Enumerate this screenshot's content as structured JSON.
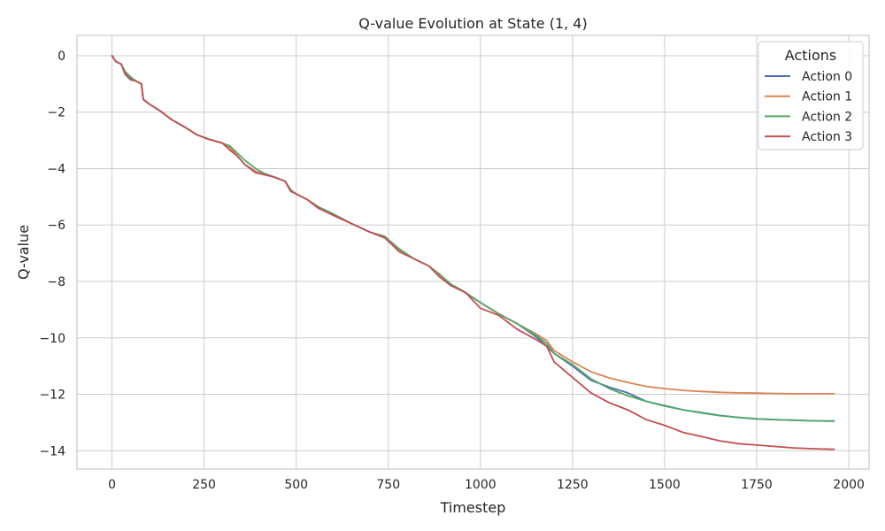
{
  "chart_data": {
    "type": "line",
    "title": "Q-value Evolution at State (1, 4)",
    "xlabel": "Timestep",
    "ylabel": "Q-value",
    "xlim": [
      -95,
      2055
    ],
    "ylim": [
      -14.65,
      0.72
    ],
    "xticks": [
      0,
      250,
      500,
      750,
      1000,
      1250,
      1500,
      1750,
      2000
    ],
    "xtick_labels": [
      "0",
      "250",
      "500",
      "750",
      "1000",
      "1250",
      "1500",
      "1750",
      "2000"
    ],
    "yticks": [
      0,
      -2,
      -4,
      -6,
      -8,
      -10,
      -12,
      -14
    ],
    "ytick_labels": [
      "0",
      "−2",
      "−4",
      "−6",
      "−8",
      "−10",
      "−12",
      "−14"
    ],
    "grid": true,
    "legend_title": "Actions",
    "legend_position": "upper-right",
    "series": [
      {
        "name": "Action 0",
        "color": "#4c72b0",
        "x": [
          0,
          10,
          25,
          35,
          50,
          65,
          80,
          85,
          100,
          130,
          160,
          180,
          200,
          230,
          260,
          300,
          320,
          340,
          360,
          390,
          410,
          440,
          470,
          485,
          500,
          530,
          560,
          600,
          650,
          700,
          740,
          780,
          820,
          860,
          890,
          920,
          960,
          1000,
          1050,
          1100,
          1150,
          1180,
          1200,
          1250,
          1300,
          1350,
          1400,
          1450,
          1500,
          1550,
          1600,
          1650,
          1700,
          1750,
          1800,
          1850,
          1900,
          1960
        ],
        "y": [
          0,
          -0.2,
          -0.3,
          -0.6,
          -0.8,
          -0.9,
          -1.0,
          -1.55,
          -1.7,
          -1.95,
          -2.25,
          -2.4,
          -2.55,
          -2.8,
          -2.95,
          -3.1,
          -3.25,
          -3.55,
          -3.85,
          -4.1,
          -4.2,
          -4.3,
          -4.45,
          -4.8,
          -4.9,
          -5.1,
          -5.4,
          -5.65,
          -5.95,
          -6.25,
          -6.45,
          -6.9,
          -7.2,
          -7.45,
          -7.8,
          -8.1,
          -8.4,
          -8.75,
          -9.15,
          -9.5,
          -9.95,
          -10.3,
          -10.55,
          -11.0,
          -11.5,
          -11.75,
          -11.95,
          -12.25,
          -12.4,
          -12.55,
          -12.65,
          -12.75,
          -12.82,
          -12.87,
          -12.9,
          -12.92,
          -12.94,
          -12.95
        ]
      },
      {
        "name": "Action 1",
        "color": "#dd8452",
        "x": [
          0,
          10,
          25,
          35,
          50,
          65,
          80,
          85,
          100,
          130,
          160,
          180,
          200,
          230,
          260,
          300,
          320,
          340,
          360,
          390,
          410,
          440,
          470,
          485,
          500,
          530,
          560,
          600,
          650,
          700,
          740,
          780,
          820,
          860,
          890,
          920,
          960,
          1000,
          1050,
          1100,
          1150,
          1180,
          1200,
          1250,
          1300,
          1350,
          1400,
          1450,
          1500,
          1550,
          1600,
          1650,
          1700,
          1750,
          1800,
          1850,
          1900,
          1960
        ],
        "y": [
          0,
          -0.2,
          -0.3,
          -0.55,
          -0.75,
          -0.9,
          -1.0,
          -1.55,
          -1.7,
          -1.95,
          -2.25,
          -2.4,
          -2.55,
          -2.8,
          -2.95,
          -3.1,
          -3.25,
          -3.55,
          -3.85,
          -4.1,
          -4.2,
          -4.3,
          -4.45,
          -4.8,
          -4.9,
          -5.1,
          -5.4,
          -5.65,
          -5.95,
          -6.25,
          -6.45,
          -6.9,
          -7.2,
          -7.45,
          -7.8,
          -8.1,
          -8.4,
          -8.75,
          -9.15,
          -9.5,
          -9.85,
          -10.1,
          -10.45,
          -10.85,
          -11.2,
          -11.42,
          -11.58,
          -11.72,
          -11.8,
          -11.86,
          -11.9,
          -11.93,
          -11.95,
          -11.96,
          -11.97,
          -11.98,
          -11.98,
          -11.98
        ]
      },
      {
        "name": "Action 2",
        "color": "#55a868",
        "x": [
          0,
          10,
          25,
          35,
          50,
          65,
          80,
          85,
          100,
          130,
          160,
          180,
          200,
          230,
          260,
          300,
          320,
          340,
          360,
          390,
          410,
          440,
          470,
          485,
          500,
          530,
          560,
          600,
          650,
          700,
          740,
          780,
          820,
          860,
          890,
          920,
          960,
          1000,
          1050,
          1100,
          1150,
          1180,
          1200,
          1250,
          1300,
          1350,
          1400,
          1450,
          1500,
          1550,
          1600,
          1650,
          1700,
          1750,
          1800,
          1850,
          1900,
          1960
        ],
        "y": [
          0,
          -0.2,
          -0.3,
          -0.55,
          -0.75,
          -0.9,
          -1.0,
          -1.55,
          -1.7,
          -1.95,
          -2.25,
          -2.4,
          -2.55,
          -2.8,
          -2.95,
          -3.1,
          -3.2,
          -3.45,
          -3.7,
          -4.0,
          -4.15,
          -4.3,
          -4.45,
          -4.75,
          -4.9,
          -5.1,
          -5.35,
          -5.6,
          -5.95,
          -6.25,
          -6.4,
          -6.85,
          -7.2,
          -7.45,
          -7.75,
          -8.1,
          -8.4,
          -8.75,
          -9.15,
          -9.5,
          -9.9,
          -10.2,
          -10.55,
          -10.95,
          -11.45,
          -11.8,
          -12.05,
          -12.25,
          -12.42,
          -12.55,
          -12.66,
          -12.76,
          -12.82,
          -12.87,
          -12.9,
          -12.92,
          -12.94,
          -12.95
        ]
      },
      {
        "name": "Action 3",
        "color": "#c44e52",
        "x": [
          0,
          10,
          25,
          35,
          50,
          65,
          80,
          85,
          100,
          130,
          160,
          180,
          200,
          230,
          260,
          300,
          320,
          340,
          360,
          390,
          410,
          440,
          470,
          485,
          500,
          530,
          560,
          600,
          650,
          700,
          740,
          780,
          820,
          860,
          890,
          920,
          960,
          1000,
          1050,
          1100,
          1150,
          1180,
          1200,
          1250,
          1300,
          1350,
          1400,
          1450,
          1500,
          1550,
          1600,
          1650,
          1700,
          1750,
          1800,
          1850,
          1900,
          1960
        ],
        "y": [
          0,
          -0.2,
          -0.3,
          -0.65,
          -0.85,
          -0.9,
          -1.0,
          -1.55,
          -1.7,
          -1.95,
          -2.25,
          -2.4,
          -2.55,
          -2.8,
          -2.95,
          -3.1,
          -3.35,
          -3.55,
          -3.85,
          -4.15,
          -4.2,
          -4.3,
          -4.45,
          -4.8,
          -4.9,
          -5.1,
          -5.4,
          -5.65,
          -5.95,
          -6.25,
          -6.45,
          -6.95,
          -7.2,
          -7.45,
          -7.85,
          -8.15,
          -8.4,
          -8.95,
          -9.2,
          -9.7,
          -10.05,
          -10.3,
          -10.85,
          -11.4,
          -11.95,
          -12.3,
          -12.55,
          -12.9,
          -13.1,
          -13.35,
          -13.5,
          -13.65,
          -13.75,
          -13.8,
          -13.85,
          -13.9,
          -13.93,
          -13.95
        ]
      }
    ]
  }
}
